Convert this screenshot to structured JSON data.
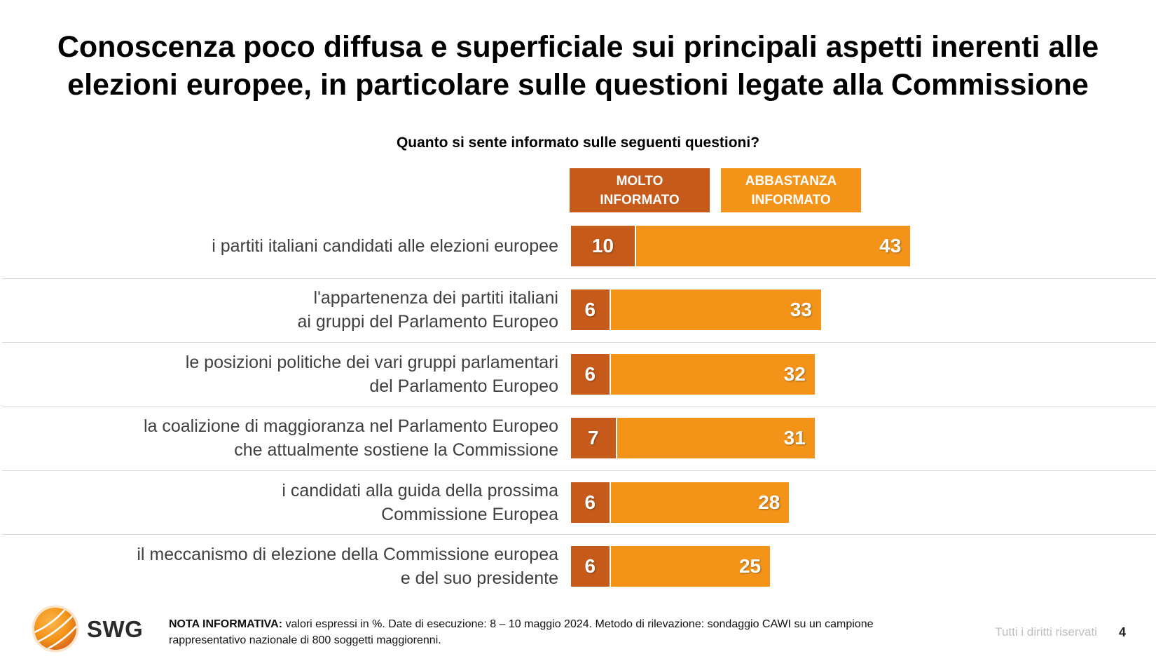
{
  "slide": {
    "title_lines": [
      "Conoscenza poco diffusa e superficiale sui principali aspetti inerenti alle",
      "elezioni europee, in particolare sulle questioni legate alla Commissione"
    ]
  },
  "chart_data": {
    "type": "bar",
    "orientation": "horizontal",
    "stacked": true,
    "title": "Quanto si sente informato sulle seguenti questioni?",
    "categories": [
      "i partiti italiani candidati alle elezioni europee",
      "l'appartenenza dei partiti italiani\nai gruppi del Parlamento Europeo",
      "le posizioni politiche dei vari gruppi parlamentari\ndel Parlamento Europeo",
      "la coalizione di maggioranza nel Parlamento Europeo\nche attualmente sostiene la Commissione",
      "i candidati alla guida della prossima\nCommissione Europea",
      "il meccanismo di elezione della Commissione europea\ne del suo presidente"
    ],
    "series": [
      {
        "name": "MOLTO INFORMATO",
        "color": "#C55A1A",
        "values": [
          10,
          6,
          6,
          7,
          6,
          6
        ]
      },
      {
        "name": "ABBASTANZA INFORMATO",
        "color": "#F39419",
        "values": [
          43,
          33,
          32,
          31,
          28,
          25
        ]
      }
    ],
    "legend_position": "top",
    "value_labels": true,
    "axes_visible": false,
    "grid": false
  },
  "footer": {
    "logo_text": "SWG",
    "note_label": "NOTA INFORMATIVA:",
    "note_text": "valori espressi in %. Date di esecuzione: 8 – 10 maggio 2024. Metodo di rilevazione: sondaggio CAWI su un campione rappresentativo nazionale di 800 soggetti maggiorenni.",
    "rights": "Tutti i diritti riservati",
    "page_number": "4"
  },
  "colors": {
    "title": "#000000",
    "category_label": "#404040",
    "separator": "#D9D9D9",
    "rights_text": "#BFBFBF",
    "logo_orange": "#F39419"
  }
}
